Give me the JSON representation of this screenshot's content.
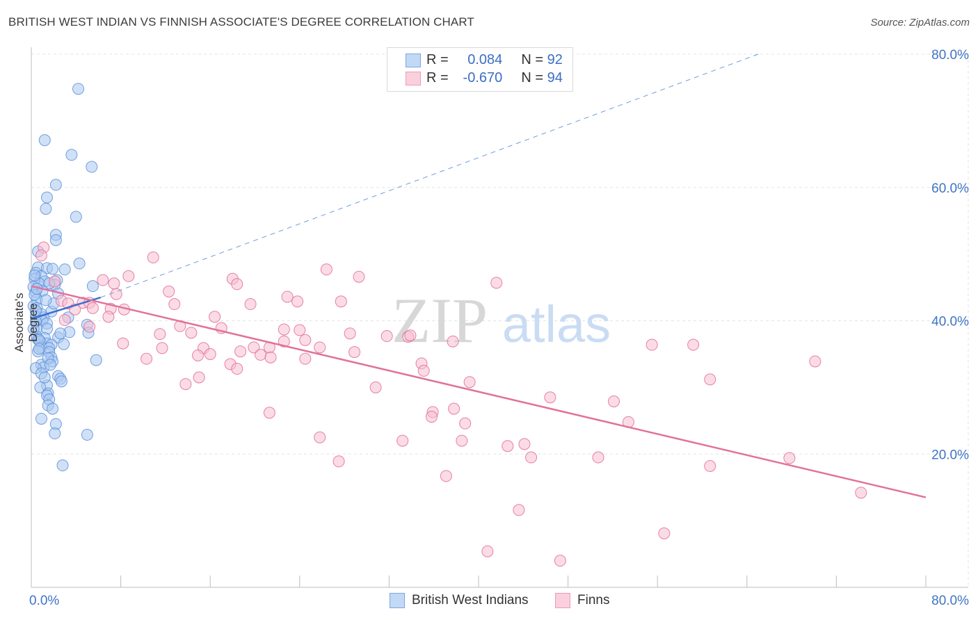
{
  "title": "BRITISH WEST INDIAN VS FINNISH ASSOCIATE'S DEGREE CORRELATION CHART",
  "source": "Source: ZipAtlas.com",
  "watermark": {
    "zip": "ZIP",
    "atlas": "atlas"
  },
  "legend": {
    "series1": {
      "r_label": "R =",
      "r_value": "0.084",
      "n_label": "N =",
      "n_value": "92",
      "color": "#9bbfee"
    },
    "series2": {
      "r_label": "R =",
      "r_value": "-0.670",
      "n_label": "N =",
      "n_value": "94",
      "color": "#f5b3c8"
    }
  },
  "bottom_legend": {
    "series1": "British West Indians",
    "series2": "Finns"
  },
  "chart_data": {
    "type": "scatter",
    "title": "BRITISH WEST INDIAN VS FINNISH ASSOCIATE'S DEGREE CORRELATION CHART",
    "xlabel": "",
    "ylabel": "Associate's Degree",
    "xlim": [
      0,
      80
    ],
    "ylim": [
      0,
      80
    ],
    "x_tick_labels": [
      "0.0%",
      "80.0%"
    ],
    "y_tick_labels": [
      "20.0%",
      "40.0%",
      "60.0%",
      "80.0%"
    ],
    "y_ticks": [
      20,
      40,
      60,
      80
    ],
    "series": [
      {
        "name": "British West Indians",
        "color": "#5b8fd9",
        "fill": "#a9c8f0",
        "trend": {
          "x0": 0,
          "y0": 40.3,
          "x1": 6.2,
          "y1": 43.5,
          "dashed_to_x": 65,
          "dashed_to_y": 80
        },
        "points": [
          [
            4.2,
            74.8
          ],
          [
            1.2,
            67.1
          ],
          [
            3.6,
            64.9
          ],
          [
            5.4,
            63.1
          ],
          [
            2.2,
            60.4
          ],
          [
            1.4,
            58.5
          ],
          [
            1.3,
            56.8
          ],
          [
            4.0,
            55.6
          ],
          [
            2.2,
            52.9
          ],
          [
            2.2,
            52.1
          ],
          [
            0.6,
            50.4
          ],
          [
            4.3,
            48.6
          ],
          [
            0.6,
            48.0
          ],
          [
            1.4,
            47.9
          ],
          [
            1.9,
            47.8
          ],
          [
            3.0,
            47.7
          ],
          [
            0.4,
            47.2
          ],
          [
            0.9,
            46.7
          ],
          [
            0.3,
            46.3
          ],
          [
            2.3,
            46.1
          ],
          [
            1.2,
            45.9
          ],
          [
            0.7,
            45.6
          ],
          [
            2.1,
            45.4
          ],
          [
            0.2,
            45.1
          ],
          [
            5.5,
            45.2
          ],
          [
            1.6,
            45.6
          ],
          [
            0.4,
            44.3
          ],
          [
            1.0,
            44.5
          ],
          [
            2.4,
            44.1
          ],
          [
            0.5,
            43.2
          ],
          [
            0.2,
            42.2
          ],
          [
            0.5,
            41.9
          ],
          [
            1.8,
            41.4
          ],
          [
            0.9,
            41.0
          ],
          [
            0.4,
            40.6
          ],
          [
            1.1,
            40.5
          ],
          [
            3.3,
            40.5
          ],
          [
            1.0,
            40.0
          ],
          [
            1.4,
            39.6
          ],
          [
            5.0,
            39.4
          ],
          [
            0.5,
            38.9
          ],
          [
            1.4,
            38.8
          ],
          [
            3.4,
            38.3
          ],
          [
            5.1,
            38.2
          ],
          [
            0.5,
            37.6
          ],
          [
            1.2,
            37.4
          ],
          [
            0.6,
            37.2
          ],
          [
            2.4,
            37.5
          ],
          [
            0.8,
            36.9
          ],
          [
            1.4,
            36.6
          ],
          [
            1.8,
            36.4
          ],
          [
            0.9,
            36.0
          ],
          [
            1.6,
            35.9
          ],
          [
            0.6,
            35.4
          ],
          [
            1.6,
            35.3
          ],
          [
            1.8,
            34.5
          ],
          [
            5.8,
            34.1
          ],
          [
            1.9,
            33.9
          ],
          [
            0.9,
            33.4
          ],
          [
            1.1,
            33.0
          ],
          [
            0.4,
            32.9
          ],
          [
            0.9,
            32.1
          ],
          [
            2.4,
            31.7
          ],
          [
            2.6,
            31.3
          ],
          [
            2.7,
            30.9
          ],
          [
            1.4,
            30.3
          ],
          [
            0.8,
            30.0
          ],
          [
            1.5,
            29.1
          ],
          [
            1.4,
            28.8
          ],
          [
            1.6,
            28.2
          ],
          [
            1.5,
            27.3
          ],
          [
            1.9,
            26.8
          ],
          [
            0.9,
            25.3
          ],
          [
            2.2,
            24.5
          ],
          [
            5.0,
            22.9
          ],
          [
            2.1,
            23.1
          ],
          [
            2.8,
            18.3
          ],
          [
            0.3,
            46.8
          ],
          [
            0.3,
            43.9
          ],
          [
            0.2,
            38.8
          ],
          [
            0.7,
            37.1
          ],
          [
            1.5,
            34.4
          ],
          [
            2.9,
            36.5
          ],
          [
            0.4,
            39.9
          ],
          [
            2.0,
            42.6
          ],
          [
            0.4,
            41.5
          ],
          [
            1.3,
            43.1
          ],
          [
            0.7,
            35.8
          ],
          [
            1.7,
            33.4
          ],
          [
            0.5,
            44.8
          ],
          [
            1.2,
            31.5
          ],
          [
            2.6,
            38.1
          ]
        ]
      },
      {
        "name": "Finns",
        "color": "#e26b97",
        "fill": "#f7bfd1",
        "trend": {
          "x0": 0,
          "y0": 45.2,
          "x1": 80,
          "y1": 13.5
        },
        "points": [
          [
            1.1,
            51.0
          ],
          [
            0.9,
            49.8
          ],
          [
            10.9,
            49.5
          ],
          [
            26.4,
            47.7
          ],
          [
            8.7,
            46.7
          ],
          [
            29.3,
            46.6
          ],
          [
            18.0,
            46.3
          ],
          [
            6.4,
            46.1
          ],
          [
            7.4,
            45.6
          ],
          [
            41.6,
            45.7
          ],
          [
            2.1,
            45.9
          ],
          [
            18.4,
            45.5
          ],
          [
            12.3,
            44.4
          ],
          [
            7.6,
            44.0
          ],
          [
            22.9,
            43.6
          ],
          [
            2.7,
            43.0
          ],
          [
            4.6,
            42.7
          ],
          [
            3.3,
            42.6
          ],
          [
            5.2,
            42.7
          ],
          [
            23.8,
            42.9
          ],
          [
            27.7,
            42.9
          ],
          [
            12.8,
            42.5
          ],
          [
            19.6,
            42.5
          ],
          [
            7.1,
            41.8
          ],
          [
            8.3,
            41.7
          ],
          [
            3.9,
            41.7
          ],
          [
            5.5,
            41.9
          ],
          [
            6.9,
            40.6
          ],
          [
            16.4,
            40.6
          ],
          [
            3.0,
            40.1
          ],
          [
            13.3,
            39.2
          ],
          [
            17.0,
            38.9
          ],
          [
            24.0,
            38.6
          ],
          [
            22.6,
            38.7
          ],
          [
            11.5,
            38.0
          ],
          [
            28.5,
            38.1
          ],
          [
            14.3,
            38.2
          ],
          [
            5.2,
            39.1
          ],
          [
            31.8,
            37.7
          ],
          [
            33.7,
            37.6
          ],
          [
            33.9,
            37.8
          ],
          [
            24.5,
            37.1
          ],
          [
            22.6,
            36.9
          ],
          [
            37.7,
            36.9
          ],
          [
            8.2,
            36.6
          ],
          [
            25.8,
            36.0
          ],
          [
            19.9,
            36.0
          ],
          [
            21.3,
            36.0
          ],
          [
            11.7,
            35.9
          ],
          [
            15.4,
            35.9
          ],
          [
            18.7,
            35.4
          ],
          [
            20.5,
            34.9
          ],
          [
            16.0,
            35.0
          ],
          [
            28.9,
            35.3
          ],
          [
            14.9,
            34.8
          ],
          [
            21.4,
            34.5
          ],
          [
            10.3,
            34.3
          ],
          [
            24.5,
            34.3
          ],
          [
            55.5,
            36.4
          ],
          [
            59.2,
            36.4
          ],
          [
            70.1,
            33.9
          ],
          [
            34.9,
            33.6
          ],
          [
            17.8,
            33.5
          ],
          [
            18.4,
            32.8
          ],
          [
            35.1,
            32.5
          ],
          [
            60.7,
            31.2
          ],
          [
            15.0,
            31.5
          ],
          [
            13.8,
            30.5
          ],
          [
            39.2,
            30.8
          ],
          [
            30.8,
            30.0
          ],
          [
            46.4,
            28.5
          ],
          [
            52.1,
            27.9
          ],
          [
            37.8,
            26.8
          ],
          [
            35.9,
            26.3
          ],
          [
            21.3,
            26.2
          ],
          [
            35.8,
            25.6
          ],
          [
            38.8,
            24.6
          ],
          [
            53.4,
            24.8
          ],
          [
            25.8,
            22.5
          ],
          [
            33.2,
            22.0
          ],
          [
            38.5,
            22.0
          ],
          [
            44.1,
            21.5
          ],
          [
            42.6,
            21.2
          ],
          [
            50.7,
            19.5
          ],
          [
            44.7,
            19.5
          ],
          [
            27.5,
            18.9
          ],
          [
            67.8,
            19.4
          ],
          [
            60.7,
            18.2
          ],
          [
            37.1,
            16.7
          ],
          [
            74.2,
            14.2
          ],
          [
            43.6,
            11.6
          ],
          [
            56.6,
            8.1
          ],
          [
            40.8,
            5.4
          ],
          [
            47.3,
            4.0
          ]
        ]
      }
    ]
  }
}
